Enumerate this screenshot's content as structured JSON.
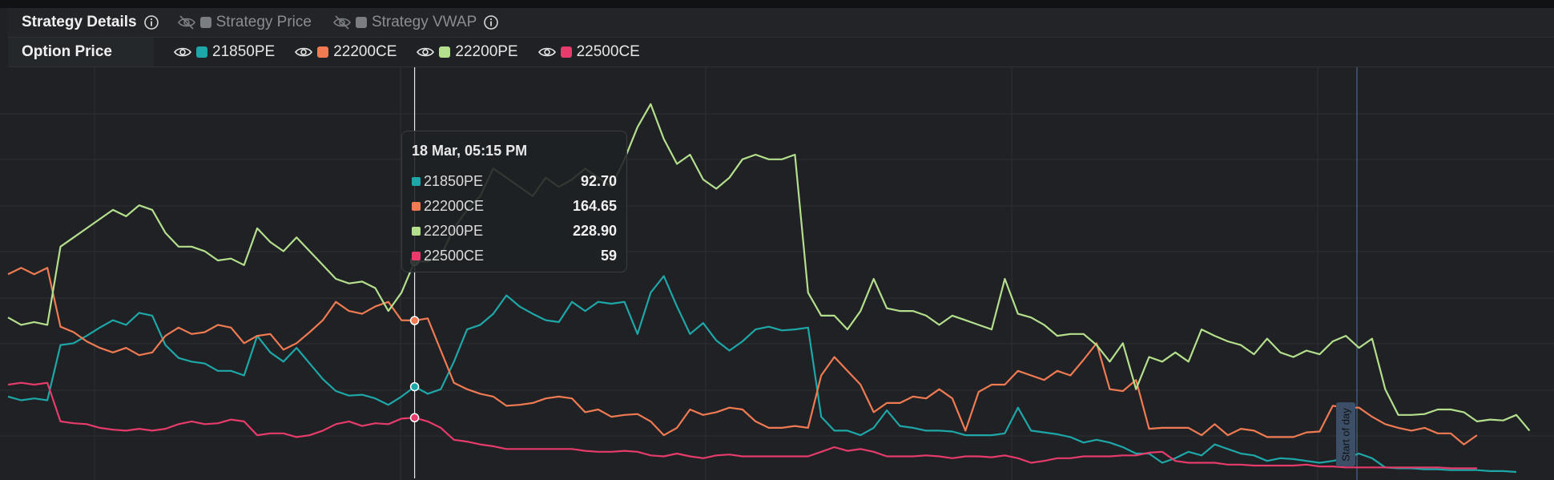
{
  "header": {
    "strategy_details": "Strategy Details",
    "toggles": [
      {
        "label": "Strategy Price",
        "visible": false,
        "color": "#7a7d82"
      },
      {
        "label": "Strategy VWAP",
        "visible": false,
        "color": "#7a7d82"
      }
    ]
  },
  "option_row": {
    "label": "Option Price",
    "legend": [
      {
        "label": "21850PE",
        "color": "#1ea7a8"
      },
      {
        "label": "22200CE",
        "color": "#f07a52"
      },
      {
        "label": "22200PE",
        "color": "#b4df8c"
      },
      {
        "label": "22500CE",
        "color": "#e63b6b"
      }
    ]
  },
  "tooltip": {
    "title": "18 Mar, 05:15 PM",
    "rows": [
      {
        "name": "21850PE",
        "value": "92.70",
        "color": "#1ea7a8"
      },
      {
        "name": "22200CE",
        "value": "164.65",
        "color": "#f07a52"
      },
      {
        "name": "22200PE",
        "value": "228.90",
        "color": "#b4df8c"
      },
      {
        "name": "22500CE",
        "value": "59",
        "color": "#e63b6b"
      }
    ]
  },
  "marker": {
    "label": "Start of day"
  },
  "chart_data": {
    "type": "line",
    "ylim": [
      0,
      440
    ],
    "xlabel": "",
    "ylabel": "",
    "grid": true,
    "hover_index": 31,
    "series": [
      {
        "name": "21850PE",
        "color": "#1ea7a8",
        "values": [
          82,
          78,
          80,
          78,
          138,
          140,
          148,
          157,
          165,
          160,
          173,
          170,
          138,
          124,
          120,
          118,
          110,
          110,
          105,
          148,
          130,
          120,
          135,
          118,
          101,
          88,
          83,
          84,
          80,
          73,
          82,
          92.7,
          85,
          90,
          120,
          155,
          160,
          172,
          192,
          180,
          172,
          165,
          163,
          185,
          175,
          185,
          183,
          185,
          150,
          195,
          213,
          180,
          150,
          162,
          143,
          132,
          142,
          155,
          158,
          154,
          155,
          157,
          60,
          45,
          45,
          40,
          48,
          67,
          50,
          48,
          45,
          45,
          44,
          40,
          40,
          40,
          42,
          70,
          45,
          43,
          41,
          38,
          32,
          35,
          32,
          27,
          20,
          20,
          10,
          15,
          22,
          18,
          30,
          25,
          20,
          18,
          12,
          15,
          14,
          12,
          10,
          12,
          15,
          20,
          15,
          5,
          4,
          4,
          3,
          3,
          2,
          2,
          2,
          1,
          1,
          0
        ]
      },
      {
        "name": "22200CE",
        "color": "#f07a52",
        "values": [
          215,
          222,
          215,
          222,
          158,
          152,
          142,
          135,
          130,
          135,
          127,
          130,
          148,
          157,
          150,
          152,
          160,
          157,
          140,
          148,
          150,
          133,
          140,
          152,
          165,
          185,
          175,
          172,
          180,
          185,
          165,
          164.65,
          167,
          132,
          97,
          90,
          85,
          82,
          72,
          73,
          75,
          80,
          82,
          80,
          65,
          68,
          60,
          62,
          63,
          55,
          40,
          48,
          68,
          62,
          65,
          70,
          68,
          55,
          48,
          48,
          50,
          48,
          105,
          125,
          110,
          95,
          65,
          75,
          75,
          82,
          80,
          90,
          80,
          45,
          87,
          95,
          95,
          110,
          105,
          100,
          110,
          105,
          122,
          140,
          90,
          88,
          100,
          47,
          48,
          48,
          48,
          40,
          52,
          40,
          47,
          45,
          38,
          38,
          38,
          43,
          44,
          72,
          70,
          70,
          60,
          52,
          48,
          45,
          48,
          42,
          42,
          30,
          40
        ]
      },
      {
        "name": "22200PE",
        "color": "#b4df8c",
        "values": [
          168,
          160,
          163,
          160,
          245,
          255,
          265,
          275,
          285,
          278,
          290,
          285,
          260,
          245,
          245,
          240,
          230,
          232,
          225,
          265,
          250,
          240,
          255,
          240,
          225,
          210,
          205,
          207,
          200,
          175,
          195,
          228.9,
          229,
          235,
          265,
          285,
          300,
          330,
          320,
          310,
          300,
          320,
          310,
          318,
          330,
          320,
          310,
          340,
          375,
          400,
          362,
          335,
          345,
          318,
          308,
          320,
          340,
          345,
          340,
          340,
          345,
          195,
          170,
          170,
          155,
          175,
          210,
          178,
          175,
          175,
          170,
          160,
          170,
          165,
          160,
          155,
          210,
          172,
          168,
          160,
          148,
          150,
          150,
          138,
          120,
          140,
          90,
          125,
          120,
          130,
          120,
          155,
          148,
          142,
          138,
          128,
          145,
          130,
          125,
          132,
          128,
          142,
          148,
          135,
          145,
          90,
          62,
          62,
          63,
          68,
          68,
          65,
          55,
          57,
          56,
          62,
          45
        ]
      },
      {
        "name": "22500CE",
        "color": "#e63b6b",
        "values": [
          95,
          97,
          95,
          97,
          55,
          53,
          52,
          48,
          46,
          45,
          47,
          45,
          47,
          52,
          55,
          52,
          53,
          57,
          55,
          40,
          42,
          42,
          38,
          40,
          45,
          52,
          55,
          50,
          53,
          52,
          58,
          59,
          55,
          48,
          35,
          33,
          30,
          28,
          25,
          25,
          25,
          25,
          25,
          25,
          23,
          22,
          22,
          23,
          22,
          18,
          17,
          20,
          17,
          15,
          18,
          19,
          17,
          17,
          17,
          17,
          17,
          17,
          22,
          27,
          23,
          25,
          22,
          17,
          17,
          17,
          18,
          17,
          15,
          17,
          17,
          16,
          18,
          15,
          10,
          12,
          15,
          15,
          17,
          17,
          17,
          18,
          18,
          21,
          22,
          12,
          10,
          10,
          10,
          8,
          8,
          7,
          7,
          7,
          7,
          8,
          6,
          6,
          5,
          5,
          5,
          5,
          5,
          5,
          5,
          5,
          4,
          4,
          4
        ]
      }
    ]
  }
}
